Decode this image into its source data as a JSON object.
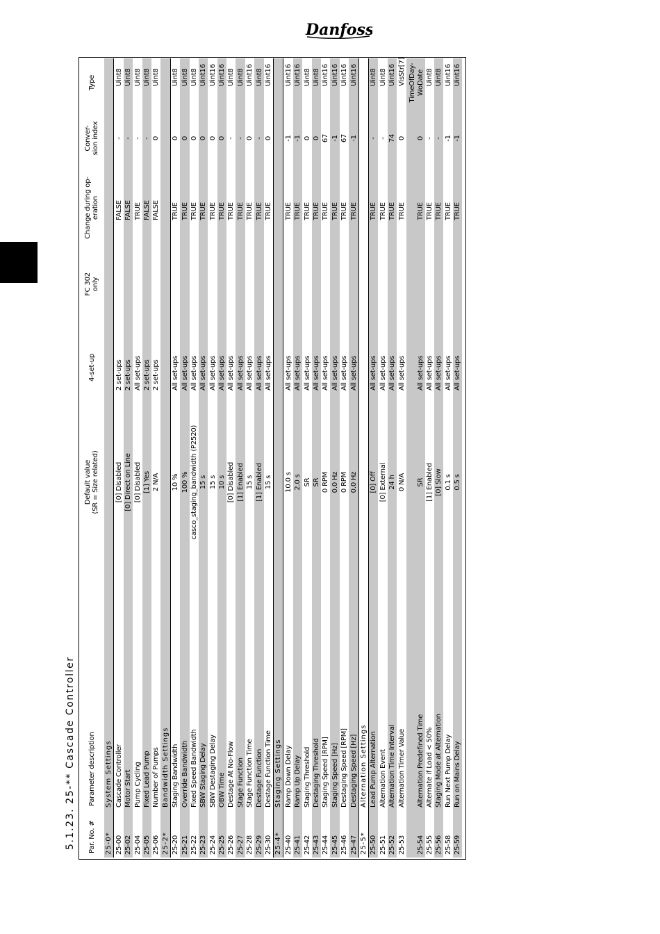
{
  "logo_text": "Danfoss",
  "title": "5.1.23.  25-**  Cascade Controller",
  "header": {
    "par_no": "Par. No. #",
    "description": "Parameter description",
    "default_line1": "Default value",
    "default_line2": "(SR = Size related)",
    "setup": "4-set-up",
    "fc302_line1": "FC 302",
    "fc302_line2": "only",
    "change_line1": "Change during op-",
    "change_line2": "eration",
    "conv_line1": "Conver-",
    "conv_line2": "sion index",
    "type": "Type"
  },
  "rows": [
    {
      "section": true,
      "par": "25-0*",
      "desc": "System Settings"
    },
    {
      "par": "25-00",
      "desc": "Cascade Controller",
      "def": "[0] Disabled",
      "set": "2 set-ups",
      "fc": "",
      "chg": "FALSE",
      "conv": "-",
      "type": "Uint8"
    },
    {
      "par": "25-02",
      "desc": "Motor Start",
      "def": "[0] Direct on Line",
      "set": "2 set-ups",
      "fc": "",
      "chg": "FALSE",
      "conv": "-",
      "type": "Uint8"
    },
    {
      "par": "25-04",
      "desc": "Pump Cycling",
      "def": "[0] Disabled",
      "set": "All set-ups",
      "fc": "",
      "chg": "TRUE",
      "conv": "-",
      "type": "Uint8"
    },
    {
      "par": "25-05",
      "desc": "Fixed Lead Pump",
      "def": "[1] Yes",
      "set": "2 set-ups",
      "fc": "",
      "chg": "FALSE",
      "conv": "-",
      "type": "Uint8"
    },
    {
      "par": "25-06",
      "desc": "Number of Pumps",
      "def": "2 N/A",
      "set": "2 set-ups",
      "fc": "",
      "chg": "FALSE",
      "conv": "0",
      "type": "Uint8"
    },
    {
      "section": true,
      "par": "25-2*",
      "desc": "Bandwidth Settings"
    },
    {
      "par": "25-20",
      "desc": "Staging Bandwidth",
      "def": "10 %",
      "set": "All set-ups",
      "fc": "",
      "chg": "TRUE",
      "conv": "0",
      "type": "Uint8"
    },
    {
      "par": "25-21",
      "desc": "Override Bandwidth",
      "def": "100 %",
      "set": "All set-ups",
      "fc": "",
      "chg": "TRUE",
      "conv": "0",
      "type": "Uint8"
    },
    {
      "par": "25-22",
      "desc": "Fixed Speed Bandwidth",
      "def": "casco_staging_bandwidth (P2520)",
      "set": "All set-ups",
      "fc": "",
      "chg": "TRUE",
      "conv": "0",
      "type": "Uint8"
    },
    {
      "par": "25-23",
      "desc": "SBW Staging Delay",
      "def": "15 s",
      "set": "All set-ups",
      "fc": "",
      "chg": "TRUE",
      "conv": "0",
      "type": "Uint16"
    },
    {
      "par": "25-24",
      "desc": "SBW Destaging Delay",
      "def": "15 s",
      "set": "All set-ups",
      "fc": "",
      "chg": "TRUE",
      "conv": "0",
      "type": "Uint16"
    },
    {
      "par": "25-25",
      "desc": "OBW Time",
      "def": "10 s",
      "set": "All set-ups",
      "fc": "",
      "chg": "TRUE",
      "conv": "0",
      "type": "Uint16"
    },
    {
      "par": "25-26",
      "desc": "Destage At No-Flow",
      "def": "[0] Disabled",
      "set": "All set-ups",
      "fc": "",
      "chg": "TRUE",
      "conv": "-",
      "type": "Uint8"
    },
    {
      "par": "25-27",
      "desc": "Stage Function",
      "def": "[1] Enabled",
      "set": "All set-ups",
      "fc": "",
      "chg": "TRUE",
      "conv": "-",
      "type": "Uint8"
    },
    {
      "par": "25-28",
      "desc": "Stage Function Time",
      "def": "15 s",
      "set": "All set-ups",
      "fc": "",
      "chg": "TRUE",
      "conv": "0",
      "type": "Uint16"
    },
    {
      "par": "25-29",
      "desc": "Destage Function",
      "def": "[1] Enabled",
      "set": "All set-ups",
      "fc": "",
      "chg": "TRUE",
      "conv": "-",
      "type": "Uint8"
    },
    {
      "par": "25-30",
      "desc": "Destage Function Time",
      "def": "15 s",
      "set": "All set-ups",
      "fc": "",
      "chg": "TRUE",
      "conv": "0",
      "type": "Uint16"
    },
    {
      "section": true,
      "par": "25-4*",
      "desc": "Staging Settings"
    },
    {
      "par": "25-40",
      "desc": "Ramp Down Delay",
      "def": "10.0 s",
      "set": "All set-ups",
      "fc": "",
      "chg": "TRUE",
      "conv": "-1",
      "type": "Uint16"
    },
    {
      "par": "25-41",
      "desc": "Ramp Up Delay",
      "def": "2.0 s",
      "set": "All set-ups",
      "fc": "",
      "chg": "TRUE",
      "conv": "-1",
      "type": "Uint16"
    },
    {
      "par": "25-42",
      "desc": "Staging Threshold",
      "def": "SR",
      "set": "All set-ups",
      "fc": "",
      "chg": "TRUE",
      "conv": "0",
      "type": "Uint8"
    },
    {
      "par": "25-43",
      "desc": "Destaging Threshold",
      "def": "SR",
      "set": "All set-ups",
      "fc": "",
      "chg": "TRUE",
      "conv": "0",
      "type": "Uint8"
    },
    {
      "par": "25-44",
      "desc": "Staging Speed [RPM]",
      "def": "0 RPM",
      "set": "All set-ups",
      "fc": "",
      "chg": "TRUE",
      "conv": "67",
      "type": "Uint16"
    },
    {
      "par": "25-45",
      "desc": "Staging Speed [Hz]",
      "def": "0.0 Hz",
      "set": "All set-ups",
      "fc": "",
      "chg": "TRUE",
      "conv": "-1",
      "type": "Uint16"
    },
    {
      "par": "25-46",
      "desc": "Destaging Speed [RPM]",
      "def": "0 RPM",
      "set": "All set-ups",
      "fc": "",
      "chg": "TRUE",
      "conv": "67",
      "type": "Uint16"
    },
    {
      "par": "25-47",
      "desc": "Destaging Speed [Hz]",
      "def": "0.0 Hz",
      "set": "All set-ups",
      "fc": "",
      "chg": "TRUE",
      "conv": "-1",
      "type": "Uint16"
    },
    {
      "section": true,
      "par": "25-5*",
      "desc": "Alternation Settings"
    },
    {
      "par": "25-50",
      "desc": "Lead Pump Alternation",
      "def": "[0] Off",
      "set": "All set-ups",
      "fc": "",
      "chg": "TRUE",
      "conv": "-",
      "type": "Uint8"
    },
    {
      "par": "25-51",
      "desc": "Alternation Event",
      "def": "[0] External",
      "set": "All set-ups",
      "fc": "",
      "chg": "TRUE",
      "conv": "-",
      "type": "Uint8"
    },
    {
      "par": "25-52",
      "desc": "Alternation Time Interval",
      "def": "24 h",
      "set": "All set-ups",
      "fc": "",
      "chg": "TRUE",
      "conv": "74",
      "type": "Uint16"
    },
    {
      "par": "25-53",
      "desc": "Alternation Timer Value",
      "def": "0 N/A",
      "set": "All set-ups",
      "fc": "",
      "chg": "TRUE",
      "conv": "0",
      "type": "VisStr[7]"
    },
    {
      "par": "25-54",
      "desc": "Alternation Predefined Time",
      "def": "SR",
      "set": "All set-ups",
      "fc": "",
      "chg": "TRUE",
      "conv": "0",
      "type": "TimeOfDay-WoDate",
      "tall": true
    },
    {
      "par": "25-55",
      "desc": "Alternate if Load < 50%",
      "def": "[1] Enabled",
      "set": "All set-ups",
      "fc": "",
      "chg": "TRUE",
      "conv": "-",
      "type": "Uint8"
    },
    {
      "par": "25-56",
      "desc": "Staging Mode at Alternation",
      "def": "[0] Slow",
      "set": "All set-ups",
      "fc": "",
      "chg": "TRUE",
      "conv": "-",
      "type": "Uint8"
    },
    {
      "par": "25-58",
      "desc": "Run Next Pump Delay",
      "def": "0.1 s",
      "set": "All set-ups",
      "fc": "",
      "chg": "TRUE",
      "conv": "-1",
      "type": "Uint16"
    },
    {
      "par": "25-59",
      "desc": "Run on Mains Delay",
      "def": "0.5 s",
      "set": "All set-ups",
      "fc": "",
      "chg": "TRUE",
      "conv": "-1",
      "type": "Uint16"
    }
  ],
  "colors": {
    "stripe": "#c8c8c8",
    "rule": "#000000"
  }
}
